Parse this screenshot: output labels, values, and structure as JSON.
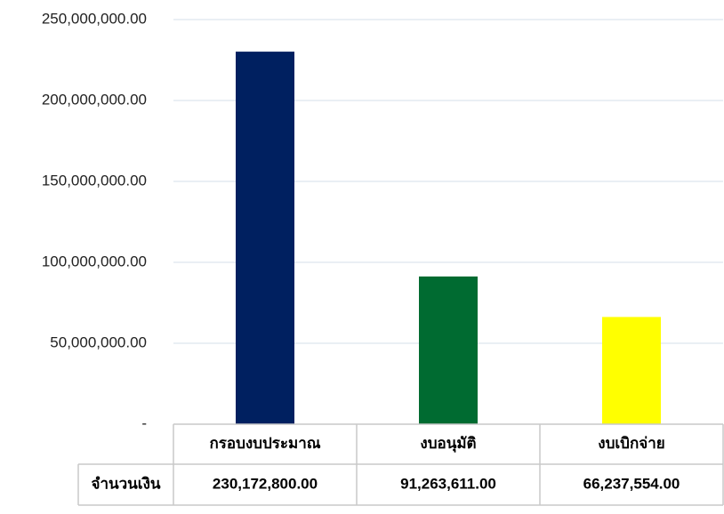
{
  "chart_data": {
    "type": "bar",
    "categories": [
      "กรอบงบประมาณ",
      "งบอนุมัติ",
      "งบเบิกจ่าย"
    ],
    "series": [
      {
        "name": "จำนวนเงิน",
        "values": [
          230172800,
          91263611,
          66237554
        ],
        "value_labels": [
          "230,172,800.00",
          "91,263,611.00",
          "66,237,554.00"
        ]
      }
    ],
    "colors": [
      "#002060",
      "#006b31",
      "#ffff00"
    ],
    "ylim": [
      0,
      250000000
    ],
    "yticks": [
      {
        "value": 0,
        "label": "-"
      },
      {
        "value": 50000000,
        "label": "50,000,000.00"
      },
      {
        "value": 100000000,
        "label": "100,000,000.00"
      },
      {
        "value": 150000000,
        "label": "150,000,000.00"
      },
      {
        "value": 200000000,
        "label": "200,000,000.00"
      },
      {
        "value": 250000000,
        "label": "250,000,000.00"
      }
    ],
    "grid": true
  }
}
